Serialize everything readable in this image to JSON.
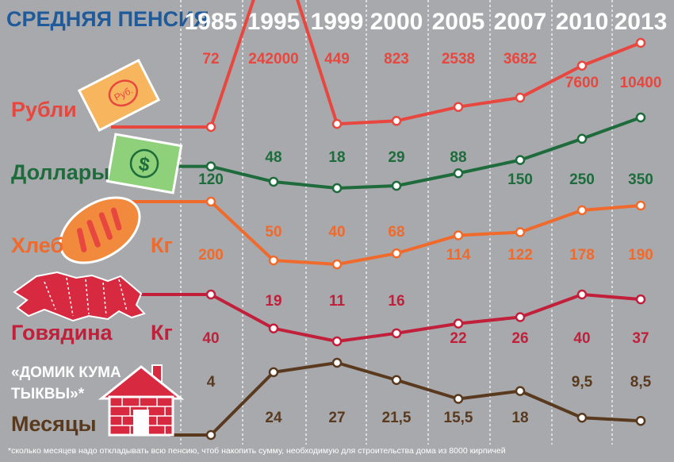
{
  "title": "СРЕДНЯЯ ПЕНСИЯ",
  "footnote": "*сколько месяцев надо откладывать всю пенсию, чтоб накопить сумму, необходимую для строительства дома из 8000 кирпичей",
  "colors": {
    "background": "#a7a9ac",
    "title": "#1f5a9a",
    "rubles": "#e8473f",
    "dollars": "#1e6b3c",
    "bread": "#f06a2c",
    "beef": "#c11f3a",
    "house": "#5a3a1e"
  },
  "icons": [
    "ruble-banknote-icon",
    "dollar-banknote-icon",
    "bread-loaf-icon",
    "beef-carcass-icon",
    "brick-house-icon"
  ],
  "labels": {
    "rubles": "Рубли",
    "dollars": "Доллары",
    "bread": "Хлеб",
    "bread_unit": "Кг",
    "beef": "Говядина",
    "beef_unit": "Кг",
    "house_line1": "«ДОМИК КУМА",
    "house_line2": "ТЫКВЫ»*",
    "house_line3": "Месяцы",
    "banknote_text": "Руб.",
    "dollar_sign": "$"
  },
  "chart_data": {
    "type": "line",
    "title": "СРЕДНЯЯ ПЕНСИЯ",
    "categories": [
      "1985",
      "1995",
      "1999",
      "2000",
      "2005",
      "2007",
      "2010",
      "2013"
    ],
    "series": [
      {
        "name": "Рубли",
        "key": "rubles",
        "values": [
          72,
          242000,
          449,
          823,
          2538,
          3682,
          7600,
          10400
        ],
        "labels": [
          "72",
          "242000",
          "449",
          "823",
          "2538",
          "3682",
          "7600",
          "10400"
        ]
      },
      {
        "name": "Доллары",
        "key": "dollars",
        "values": [
          120,
          48,
          18,
          29,
          88,
          150,
          250,
          350
        ],
        "labels": [
          "120",
          "48",
          "18",
          "29",
          "88",
          "150",
          "250",
          "350"
        ]
      },
      {
        "name": "Хлеб",
        "unit": "Кг",
        "key": "bread",
        "values": [
          200,
          50,
          40,
          68,
          114,
          122,
          178,
          190
        ],
        "labels": [
          "200",
          "50",
          "40",
          "68",
          "114",
          "122",
          "178",
          "190"
        ]
      },
      {
        "name": "Говядина",
        "unit": "Кг",
        "key": "beef",
        "values": [
          40,
          19,
          11,
          16,
          22,
          26,
          40,
          37
        ],
        "labels": [
          "40",
          "19",
          "11",
          "16",
          "22",
          "26",
          "40",
          "37"
        ]
      },
      {
        "name": "Месяцы",
        "key": "house",
        "values": [
          4,
          24,
          27,
          21.5,
          15.5,
          18,
          9.5,
          8.5
        ],
        "labels": [
          "4",
          "24",
          "27",
          "21,5",
          "15,5",
          "18",
          "9,5",
          "8,5"
        ]
      }
    ]
  }
}
